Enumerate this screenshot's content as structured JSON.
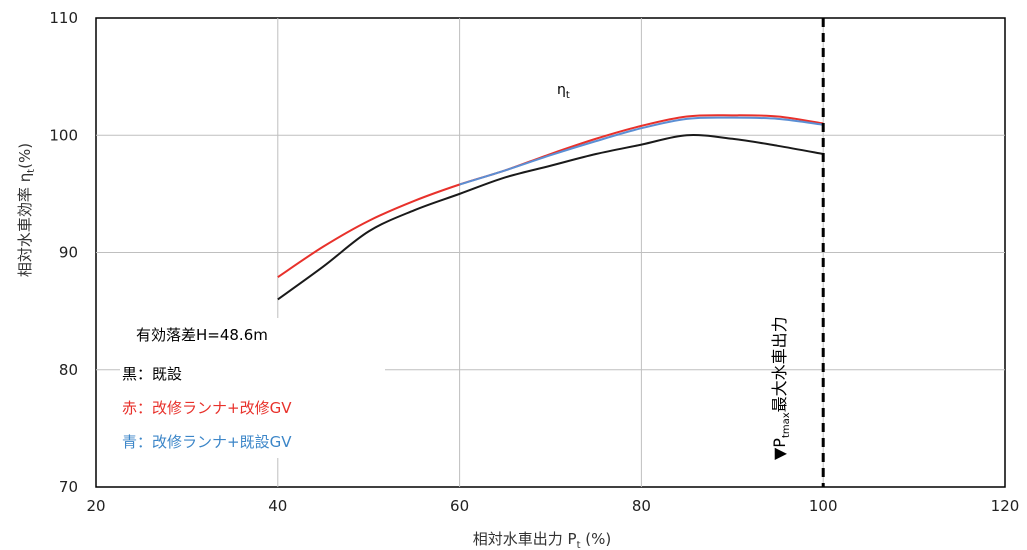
{
  "chart_data": {
    "type": "line",
    "xlabel_main": "相対水車出力 P",
    "xlabel_sub": "t",
    "xlabel_unit": " (%)",
    "ylabel_main": "相対水車効率 η",
    "ylabel_sub": "t",
    "ylabel_unit": "(%)",
    "xlim": [
      20,
      120
    ],
    "ylim": [
      70,
      110
    ],
    "xticks": [
      20,
      40,
      60,
      80,
      100,
      120
    ],
    "yticks": [
      70,
      80,
      90,
      100,
      110
    ],
    "grid": true,
    "eta_label_main": "η",
    "eta_label_sub": "t",
    "annotations": {
      "head": "有効落差H=48.6m",
      "black": "黒：既設",
      "red": "赤：改修ランナ+改修GV",
      "blue": "青：改修ランナ+既設GV"
    },
    "max_output_line": {
      "x": 100,
      "label_marker": "▼P",
      "label_sub": "tmax",
      "label_text": "最大水車出力"
    },
    "series": [
      {
        "color": "#1a1a1a",
        "x": [
          40,
          45,
          50,
          55,
          60,
          65,
          70,
          75,
          80,
          85,
          90,
          95,
          100
        ],
        "y": [
          86.0,
          88.8,
          91.8,
          93.6,
          95.0,
          96.4,
          97.4,
          98.4,
          99.2,
          100.0,
          99.7,
          99.1,
          98.4
        ]
      },
      {
        "color": "#e8312b",
        "x": [
          40,
          45,
          50,
          55,
          60,
          65,
          70,
          75,
          80,
          85,
          90,
          95,
          100
        ],
        "y": [
          87.9,
          90.5,
          92.7,
          94.4,
          95.8,
          97.0,
          98.4,
          99.7,
          100.8,
          101.6,
          101.7,
          101.6,
          101.0
        ]
      },
      {
        "color": "#5b8fd4",
        "x": [
          60,
          65,
          70,
          75,
          80,
          85,
          90,
          95,
          100
        ],
        "y": [
          95.8,
          97.0,
          98.3,
          99.5,
          100.6,
          101.4,
          101.5,
          101.4,
          100.9
        ]
      }
    ]
  }
}
